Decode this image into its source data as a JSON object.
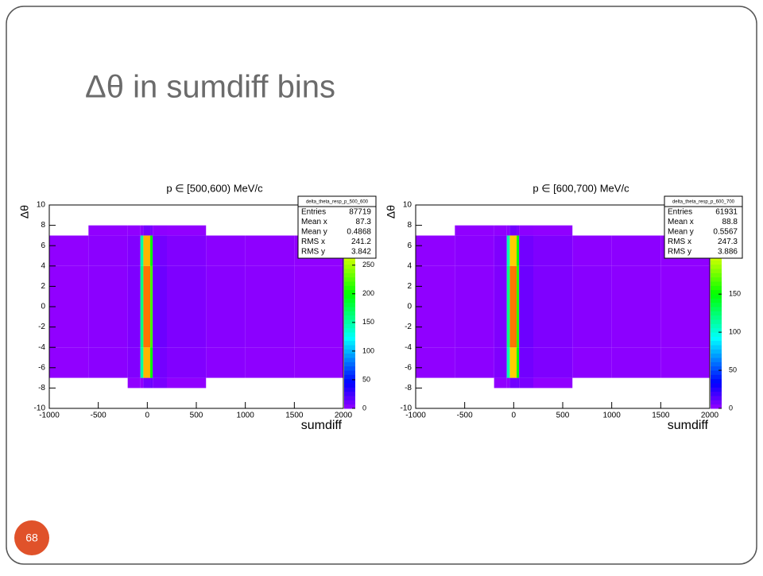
{
  "slide_title": "Δθ in sumdiff bins",
  "page_number": "68",
  "chart_data": [
    {
      "type": "heatmap",
      "title": "p ∈ [500,600) MeV/c",
      "x_label": "sumdiff",
      "y_label": "Δθ",
      "xlim": [
        -1000,
        2000
      ],
      "xticks": [
        -1000,
        -500,
        0,
        500,
        1000,
        1500,
        2000
      ],
      "ylim": [
        -10,
        10
      ],
      "yticks": [
        -10,
        -8,
        -6,
        -4,
        -2,
        0,
        2,
        4,
        6,
        8,
        10
      ],
      "zlim": [
        0,
        355
      ],
      "zticks": [
        0,
        50,
        100,
        150,
        200,
        250
      ],
      "x_edges": [
        -1000,
        -600,
        -200,
        -70,
        -40,
        30,
        55,
        200,
        600,
        1000,
        1500,
        2000
      ],
      "y_edges": [
        -10,
        -8,
        -7,
        -4,
        0,
        4,
        7,
        8,
        10
      ],
      "z": [
        [
          0,
          0,
          0,
          0,
          0,
          0,
          0,
          0,
          0,
          0,
          0
        ],
        [
          0,
          0,
          1,
          1,
          10,
          12,
          8,
          1,
          0,
          0,
          0
        ],
        [
          1,
          3,
          6,
          150,
          300,
          200,
          10,
          6,
          3,
          2,
          1
        ],
        [
          1,
          3,
          7,
          160,
          320,
          220,
          12,
          7,
          4,
          3,
          1
        ],
        [
          1,
          3,
          7,
          160,
          320,
          220,
          12,
          7,
          4,
          3,
          1
        ],
        [
          1,
          3,
          6,
          150,
          300,
          200,
          10,
          6,
          3,
          2,
          1
        ],
        [
          0,
          1,
          1,
          3,
          10,
          8,
          2,
          1,
          0,
          0,
          0
        ],
        [
          0,
          0,
          0,
          0,
          0,
          0,
          0,
          0,
          0,
          0,
          0
        ]
      ],
      "stats_name": "delta_theta_resp_p_500_600",
      "stats": [
        {
          "label": "Entries",
          "value": 87719
        },
        {
          "label": "Mean x",
          "value": 87.3
        },
        {
          "label": "Mean y",
          "value": 0.4868
        },
        {
          "label": "RMS x",
          "value": 241.2
        },
        {
          "label": "RMS y",
          "value": 3.842
        }
      ]
    },
    {
      "type": "heatmap",
      "title": "p ∈ [600,700) MeV/c",
      "x_label": "sumdiff",
      "y_label": "Δθ",
      "xlim": [
        -1000,
        2000
      ],
      "xticks": [
        -1000,
        -500,
        0,
        500,
        1000,
        1500,
        2000
      ],
      "ylim": [
        -10,
        10
      ],
      "yticks": [
        -10,
        -8,
        -6,
        -4,
        -2,
        0,
        2,
        4,
        6,
        8,
        10
      ],
      "zlim": [
        0,
        267
      ],
      "zticks": [
        0,
        50,
        100,
        150
      ],
      "x_edges": [
        -1000,
        -600,
        -200,
        -70,
        -40,
        30,
        55,
        200,
        600,
        1000,
        1500,
        2000
      ],
      "y_edges": [
        -10,
        -8,
        -7,
        -4,
        0,
        4,
        7,
        8,
        10
      ],
      "z": [
        [
          0,
          0,
          0,
          0,
          0,
          0,
          0,
          0,
          0,
          0,
          0
        ],
        [
          0,
          0,
          1,
          1,
          8,
          9,
          6,
          1,
          0,
          0,
          0
        ],
        [
          1,
          2,
          5,
          110,
          220,
          150,
          8,
          5,
          2,
          2,
          1
        ],
        [
          1,
          2,
          5,
          120,
          240,
          160,
          9,
          5,
          3,
          2,
          1
        ],
        [
          1,
          2,
          5,
          120,
          240,
          160,
          9,
          5,
          3,
          2,
          1
        ],
        [
          1,
          2,
          5,
          110,
          220,
          150,
          8,
          5,
          2,
          2,
          1
        ],
        [
          0,
          1,
          1,
          2,
          8,
          6,
          2,
          1,
          0,
          0,
          0
        ],
        [
          0,
          0,
          0,
          0,
          0,
          0,
          0,
          0,
          0,
          0,
          0
        ]
      ],
      "stats_name": "delta_theta_resp_p_600_700",
      "stats": [
        {
          "label": "Entries",
          "value": 61931
        },
        {
          "label": "Mean x",
          "value": 88.8
        },
        {
          "label": "Mean y",
          "value": 0.5567
        },
        {
          "label": "RMS x",
          "value": 247.3
        },
        {
          "label": "RMS y",
          "value": 3.886
        }
      ]
    }
  ]
}
